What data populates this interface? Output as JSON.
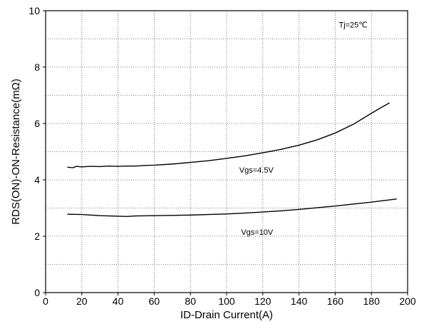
{
  "chart_data": {
    "type": "line",
    "xlabel": "ID-Drain Current(A)",
    "ylabel": "RDS(ON)-ON-Resistance(mΩ)",
    "xlim": [
      0,
      200
    ],
    "ylim": [
      0,
      10
    ],
    "x_ticks": [
      0,
      20,
      40,
      60,
      80,
      100,
      120,
      140,
      160,
      180,
      200
    ],
    "y_ticks": [
      0,
      2,
      4,
      6,
      8,
      10
    ],
    "x_grid_step": 20,
    "y_grid_step": 1,
    "grid": true,
    "annotations": [
      {
        "text": "Tj=25℃",
        "x": 162,
        "y": 9.4
      },
      {
        "text": "Vgs=4.5V",
        "x": 107,
        "y": 4.25
      },
      {
        "text": "Vgs=10V",
        "x": 108,
        "y": 2.05
      }
    ],
    "series": [
      {
        "name": "Vgs=4.5V",
        "x": [
          12,
          15,
          17,
          20,
          25,
          30,
          35,
          40,
          45,
          50,
          55,
          60,
          70,
          80,
          90,
          100,
          110,
          120,
          130,
          140,
          150,
          160,
          170,
          180,
          185,
          190
        ],
        "y": [
          4.45,
          4.43,
          4.48,
          4.46,
          4.48,
          4.47,
          4.49,
          4.48,
          4.49,
          4.49,
          4.51,
          4.52,
          4.56,
          4.62,
          4.68,
          4.76,
          4.85,
          4.96,
          5.08,
          5.23,
          5.42,
          5.66,
          5.97,
          6.36,
          6.55,
          6.73
        ]
      },
      {
        "name": "Vgs=10V",
        "x": [
          12,
          20,
          30,
          40,
          45,
          50,
          60,
          70,
          80,
          90,
          100,
          110,
          120,
          130,
          140,
          150,
          160,
          170,
          180,
          190,
          194
        ],
        "y": [
          2.78,
          2.77,
          2.73,
          2.71,
          2.7,
          2.72,
          2.73,
          2.74,
          2.75,
          2.77,
          2.79,
          2.82,
          2.86,
          2.9,
          2.95,
          3.01,
          3.07,
          3.14,
          3.21,
          3.29,
          3.32
        ]
      }
    ]
  }
}
